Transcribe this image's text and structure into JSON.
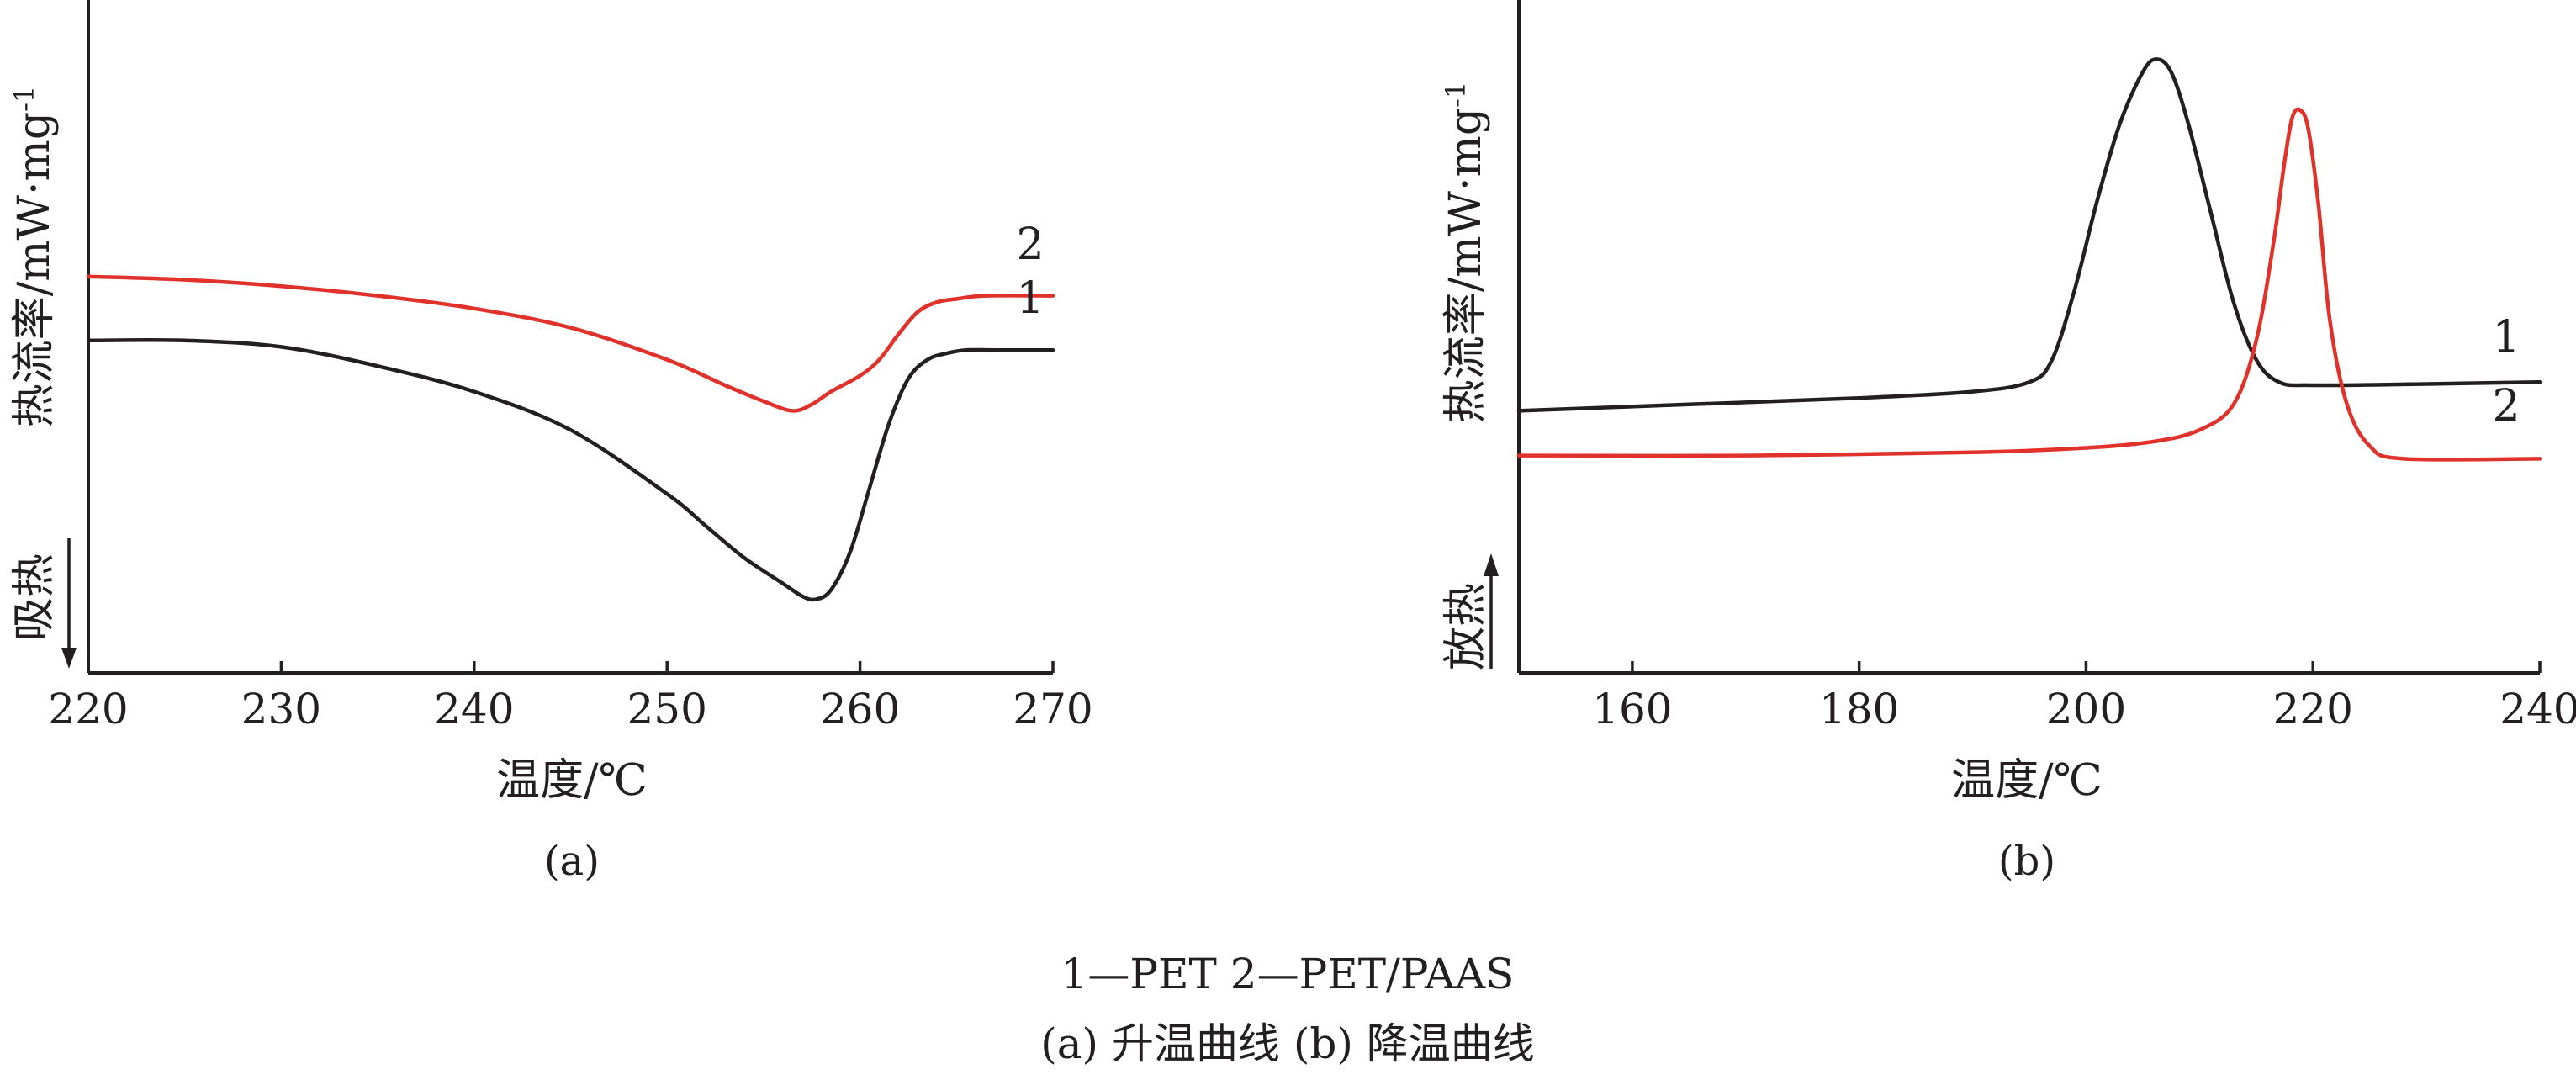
{
  "chart_data": [
    {
      "type": "line",
      "panel_label": "(a)",
      "xlabel": "温度/℃",
      "ylabel": "热流率/mW·mg",
      "ylabel_sup": "-1",
      "direction_label": "吸热",
      "direction": "down",
      "xlim": [
        220,
        270
      ],
      "xticks": [
        220,
        230,
        240,
        250,
        260,
        270
      ],
      "ylim": [
        0,
        1
      ],
      "y_ticks_shown": false,
      "grid": false,
      "series": [
        {
          "name": "1",
          "color": "#231f20",
          "x": [
            220,
            225,
            230,
            235,
            240,
            245,
            250,
            252,
            254,
            256,
            257,
            257.7,
            258.5,
            259.5,
            260.5,
            261.5,
            262.5,
            263.5,
            264.5,
            265.5,
            267,
            270
          ],
          "y": [
            0.52,
            0.52,
            0.51,
            0.48,
            0.44,
            0.38,
            0.28,
            0.23,
            0.18,
            0.14,
            0.12,
            0.115,
            0.13,
            0.19,
            0.29,
            0.39,
            0.46,
            0.49,
            0.5,
            0.505,
            0.505,
            0.505
          ]
        },
        {
          "name": "2",
          "color": "#e0312b",
          "x": [
            220,
            225,
            230,
            235,
            240,
            245,
            250,
            253,
            255,
            256.5,
            257.5,
            258.5,
            260,
            261,
            262,
            263,
            264,
            265,
            266.5,
            270
          ],
          "y": [
            0.62,
            0.615,
            0.605,
            0.59,
            0.57,
            0.54,
            0.49,
            0.45,
            0.425,
            0.41,
            0.42,
            0.44,
            0.465,
            0.49,
            0.53,
            0.565,
            0.58,
            0.585,
            0.59,
            0.59
          ]
        }
      ]
    },
    {
      "type": "line",
      "panel_label": "(b)",
      "xlabel": "温度/℃",
      "ylabel": "热流率/mW·mg",
      "ylabel_sup": "-1",
      "direction_label": "放热",
      "direction": "up",
      "xlim": [
        150,
        240
      ],
      "xticks": [
        160,
        180,
        200,
        220,
        240
      ],
      "ylim": [
        0,
        1
      ],
      "y_ticks_shown": false,
      "grid": false,
      "series": [
        {
          "name": "1",
          "color": "#231f20",
          "x": [
            150,
            165,
            180,
            190,
            195,
            197,
            199,
            201,
            203,
            205,
            206.2,
            207.5,
            209,
            211,
            213,
            215,
            217,
            220,
            230,
            240
          ],
          "y": [
            0.41,
            0.42,
            0.43,
            0.44,
            0.455,
            0.49,
            0.6,
            0.74,
            0.86,
            0.94,
            0.96,
            0.94,
            0.86,
            0.72,
            0.58,
            0.49,
            0.455,
            0.45,
            0.452,
            0.455
          ]
        },
        {
          "name": "2",
          "color": "#e0312b",
          "x": [
            150,
            170,
            190,
            200,
            206,
            210,
            213,
            215,
            216.5,
            217.5,
            218.2,
            218.9,
            219.6,
            220.5,
            221.5,
            223,
            225,
            228,
            240
          ],
          "y": [
            0.34,
            0.34,
            0.345,
            0.352,
            0.362,
            0.38,
            0.42,
            0.52,
            0.67,
            0.8,
            0.87,
            0.88,
            0.85,
            0.73,
            0.55,
            0.42,
            0.355,
            0.335,
            0.335
          ]
        }
      ]
    }
  ],
  "caption": {
    "legend_line": "1—PET 2—PET/PAAS",
    "subtitle_line": "(a) 升温曲线 (b) 降温曲线"
  }
}
